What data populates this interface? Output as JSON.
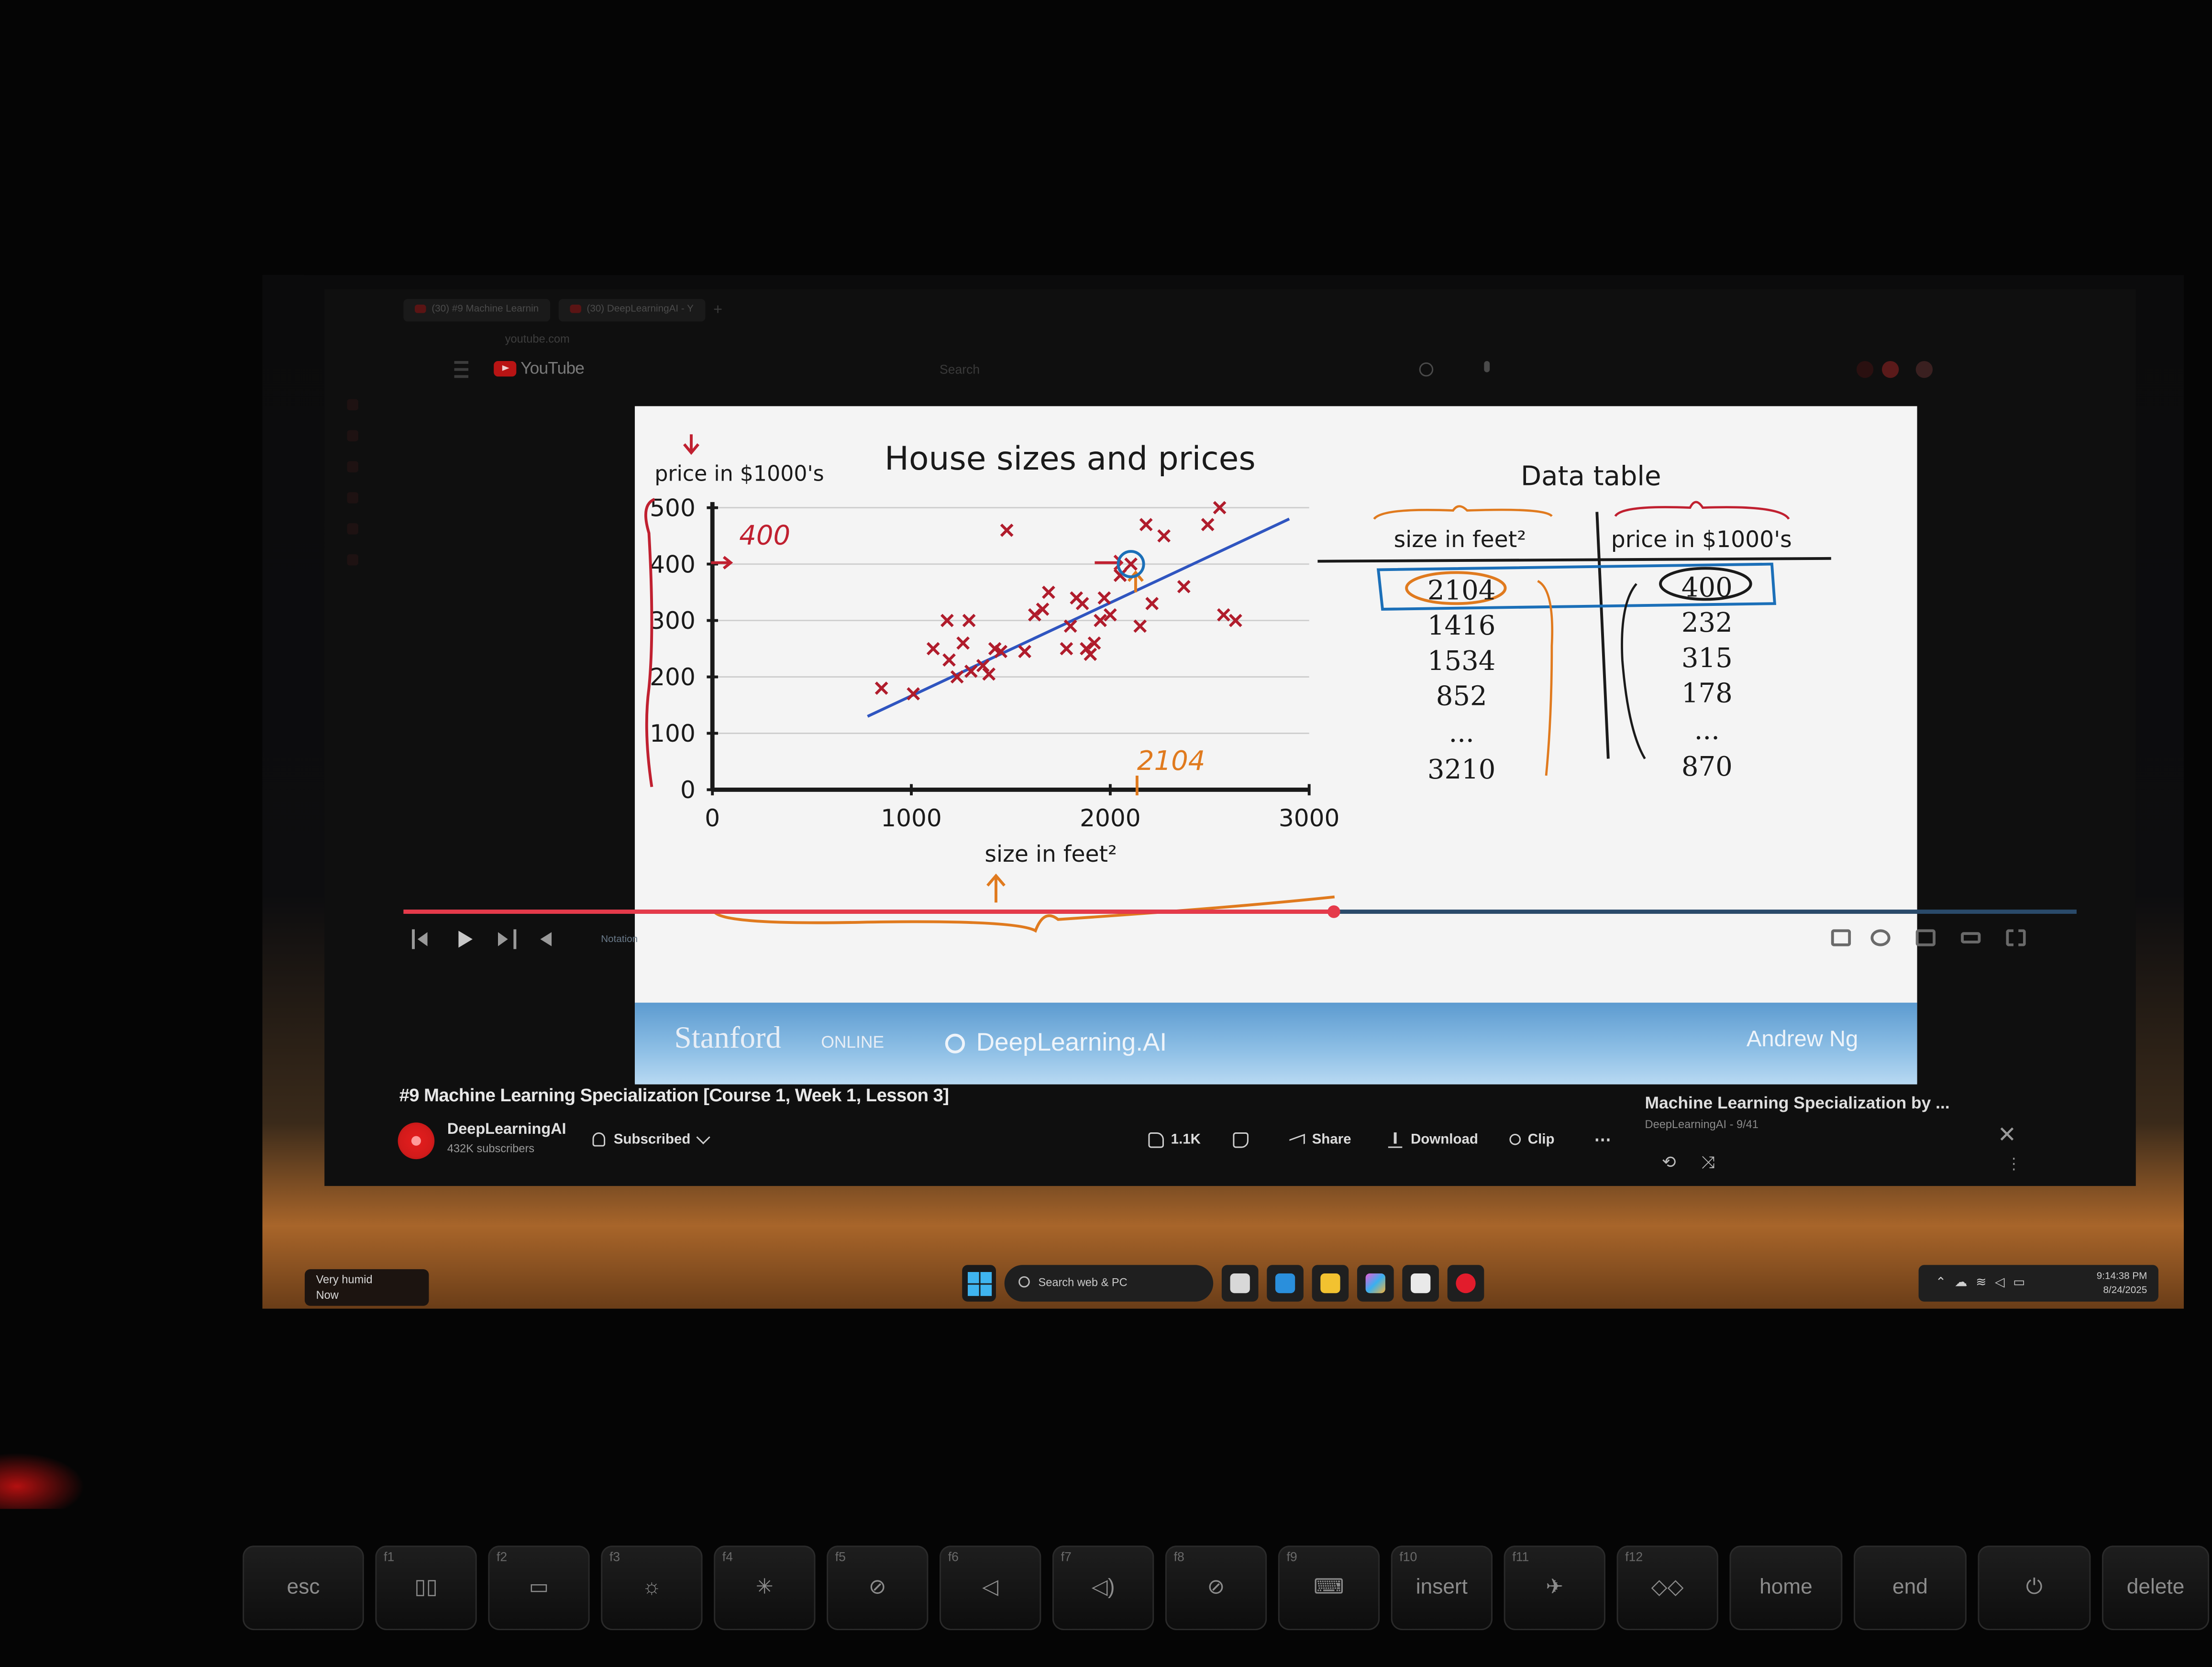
{
  "browser": {
    "tabs": [
      {
        "label": "(30) #9 Machine Learnin"
      },
      {
        "label": "(30) DeepLearningAI - Y"
      }
    ],
    "url": "youtube.com"
  },
  "youtube": {
    "logo_text": "YouTube",
    "search_placeholder": "Search"
  },
  "slide": {
    "title": "House sizes and prices",
    "ylabel": "price in $1000's",
    "xlabel": "size in feet²",
    "annotation_y": "400",
    "annotation_x": "2104",
    "table": {
      "title": "Data table",
      "col1_header": "size in feet²",
      "col2_header": "price in $1000's",
      "col1": [
        "2104",
        "1416",
        "1534",
        "852",
        "...",
        "3210"
      ],
      "col2": [
        "400",
        "232",
        "315",
        "178",
        "...",
        "870"
      ]
    },
    "footer": {
      "stanford": "Stanford",
      "online": "ONLINE",
      "deeplearning": "DeepLearning.AI",
      "presenter": "Andrew Ng"
    }
  },
  "chart_data": {
    "type": "scatter",
    "title": "House sizes and prices",
    "xlabel": "size in feet²",
    "ylabel": "price in $1000's",
    "xlim": [
      0,
      3000
    ],
    "ylim": [
      0,
      500
    ],
    "xticks": [
      0,
      1000,
      2000,
      3000
    ],
    "yticks": [
      0,
      100,
      200,
      300,
      400,
      500
    ],
    "grid": true,
    "points": [
      [
        850,
        180
      ],
      [
        1010,
        170
      ],
      [
        1110,
        250
      ],
      [
        1180,
        300
      ],
      [
        1190,
        230
      ],
      [
        1230,
        200
      ],
      [
        1260,
        260
      ],
      [
        1290,
        300
      ],
      [
        1300,
        210
      ],
      [
        1360,
        220
      ],
      [
        1390,
        205
      ],
      [
        1420,
        250
      ],
      [
        1450,
        245
      ],
      [
        1480,
        460
      ],
      [
        1570,
        245
      ],
      [
        1620,
        310
      ],
      [
        1660,
        320
      ],
      [
        1690,
        350
      ],
      [
        1780,
        250
      ],
      [
        1800,
        290
      ],
      [
        1830,
        340
      ],
      [
        1860,
        330
      ],
      [
        1880,
        250
      ],
      [
        1900,
        240
      ],
      [
        1920,
        260
      ],
      [
        1950,
        300
      ],
      [
        1970,
        340
      ],
      [
        2000,
        310
      ],
      [
        2050,
        380
      ],
      [
        2104,
        400
      ],
      [
        2150,
        290
      ],
      [
        2180,
        470
      ],
      [
        2210,
        330
      ],
      [
        2270,
        450
      ],
      [
        2370,
        360
      ],
      [
        2490,
        470
      ],
      [
        2550,
        500
      ],
      [
        2570,
        310
      ],
      [
        2630,
        300
      ]
    ],
    "highlight_point": [
      2104,
      400
    ],
    "fit_line": [
      [
        780,
        130
      ],
      [
        2900,
        480
      ]
    ]
  },
  "player": {
    "chapter": "Notation"
  },
  "video": {
    "title": "#9 Machine Learning Specialization [Course 1, Week 1, Lesson 3]",
    "channel": "DeepLearningAI",
    "subscribers": "432K subscribers",
    "subscribe_label": "Subscribed",
    "likes": "1.1K",
    "share_label": "Share",
    "download_label": "Download",
    "clip_label": "Clip"
  },
  "playlist": {
    "title": "Machine Learning Specialization by ...",
    "subtitle": "DeepLearningAI - 9/41"
  },
  "taskbar": {
    "weather_line1": "Very humid",
    "weather_line2": "Now",
    "search_placeholder": "Search web & PC",
    "time": "9:14:38 PM",
    "date": "8/24/2025"
  },
  "keyboard": {
    "keys": [
      "esc",
      "f1",
      "f2",
      "f3",
      "f4",
      "f5",
      "f6",
      "f7",
      "f8",
      "f9",
      "insert",
      "f11",
      "f12",
      "home",
      "end",
      "power",
      "delete"
    ],
    "insert_fn": "f10"
  },
  "colors": {
    "point": "#b01c2c",
    "fit_line": "#2f55c0",
    "annotation_orange": "#e07a1e",
    "annotation_red": "#c02030",
    "annotation_blue": "#1b6fb8",
    "progress": "#e53a4a"
  }
}
